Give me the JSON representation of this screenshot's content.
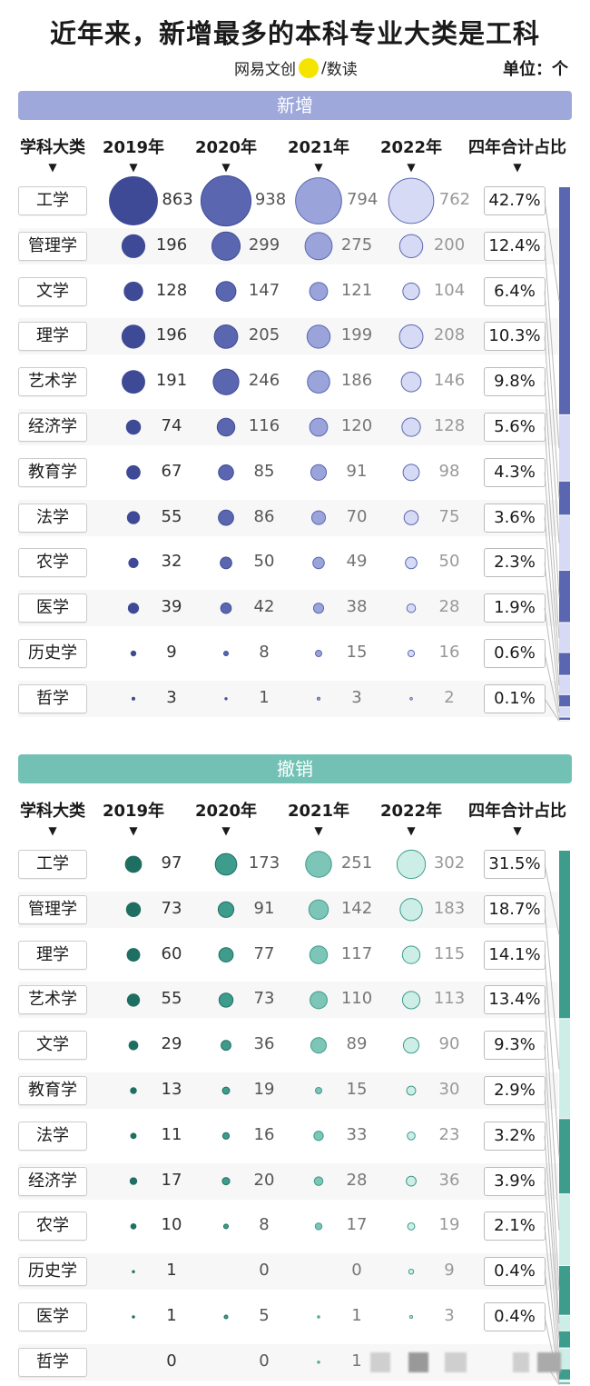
{
  "title": "近年来，新增最多的本科专业大类是工科",
  "source": {
    "left": "网易文创",
    "right": "数读"
  },
  "unit": "单位：个",
  "colors": {
    "added": [
      "#3e4a95",
      "#5a67b0",
      "#9aa3da",
      "#d6daf4"
    ],
    "removed": [
      "#1f6e62",
      "#3d9c8c",
      "#7cc5b7",
      "#cdeee7"
    ],
    "added_banner": "#9ea8da",
    "removed_banner": "#73c1b5"
  },
  "chart_data": [
    {
      "type": "table",
      "title": "新增",
      "columns": [
        "学科大类",
        "2019年",
        "2020年",
        "2021年",
        "2022年",
        "四年合计占比"
      ],
      "rows": [
        {
          "category": "工学",
          "values": [
            863,
            938,
            794,
            762
          ],
          "share": "42.7%"
        },
        {
          "category": "管理学",
          "values": [
            196,
            299,
            275,
            200
          ],
          "share": "12.4%"
        },
        {
          "category": "文学",
          "values": [
            128,
            147,
            121,
            104
          ],
          "share": "6.4%"
        },
        {
          "category": "理学",
          "values": [
            196,
            205,
            199,
            208
          ],
          "share": "10.3%"
        },
        {
          "category": "艺术学",
          "values": [
            191,
            246,
            186,
            146
          ],
          "share": "9.8%"
        },
        {
          "category": "经济学",
          "values": [
            74,
            116,
            120,
            128
          ],
          "share": "5.6%"
        },
        {
          "category": "教育学",
          "values": [
            67,
            85,
            91,
            98
          ],
          "share": "4.3%"
        },
        {
          "category": "法学",
          "values": [
            55,
            86,
            70,
            75
          ],
          "share": "3.6%"
        },
        {
          "category": "农学",
          "values": [
            32,
            50,
            49,
            50
          ],
          "share": "2.3%"
        },
        {
          "category": "医学",
          "values": [
            39,
            42,
            38,
            28
          ],
          "share": "1.9%"
        },
        {
          "category": "历史学",
          "values": [
            9,
            8,
            15,
            16
          ],
          "share": "0.6%"
        },
        {
          "category": "哲学",
          "values": [
            3,
            1,
            3,
            2
          ],
          "share": "0.1%"
        }
      ]
    },
    {
      "type": "table",
      "title": "撤销",
      "columns": [
        "学科大类",
        "2019年",
        "2020年",
        "2021年",
        "2022年",
        "四年合计占比"
      ],
      "rows": [
        {
          "category": "工学",
          "values": [
            97,
            173,
            251,
            302
          ],
          "share": "31.5%"
        },
        {
          "category": "管理学",
          "values": [
            73,
            91,
            142,
            183
          ],
          "share": "18.7%"
        },
        {
          "category": "理学",
          "values": [
            60,
            77,
            117,
            115
          ],
          "share": "14.1%"
        },
        {
          "category": "艺术学",
          "values": [
            55,
            73,
            110,
            113
          ],
          "share": "13.4%"
        },
        {
          "category": "文学",
          "values": [
            29,
            36,
            89,
            90
          ],
          "share": "9.3%"
        },
        {
          "category": "教育学",
          "values": [
            13,
            19,
            15,
            30
          ],
          "share": "2.9%"
        },
        {
          "category": "法学",
          "values": [
            11,
            16,
            33,
            23
          ],
          "share": "3.2%"
        },
        {
          "category": "经济学",
          "values": [
            17,
            20,
            28,
            36
          ],
          "share": "3.9%"
        },
        {
          "category": "农学",
          "values": [
            10,
            8,
            17,
            19
          ],
          "share": "2.1%"
        },
        {
          "category": "历史学",
          "values": [
            1,
            0,
            0,
            9
          ],
          "share": "0.4%"
        },
        {
          "category": "医学",
          "values": [
            1,
            5,
            1,
            3
          ],
          "share": "0.4%"
        },
        {
          "category": "哲学",
          "values": [
            0,
            0,
            1,
            null
          ],
          "share": ""
        }
      ]
    }
  ]
}
